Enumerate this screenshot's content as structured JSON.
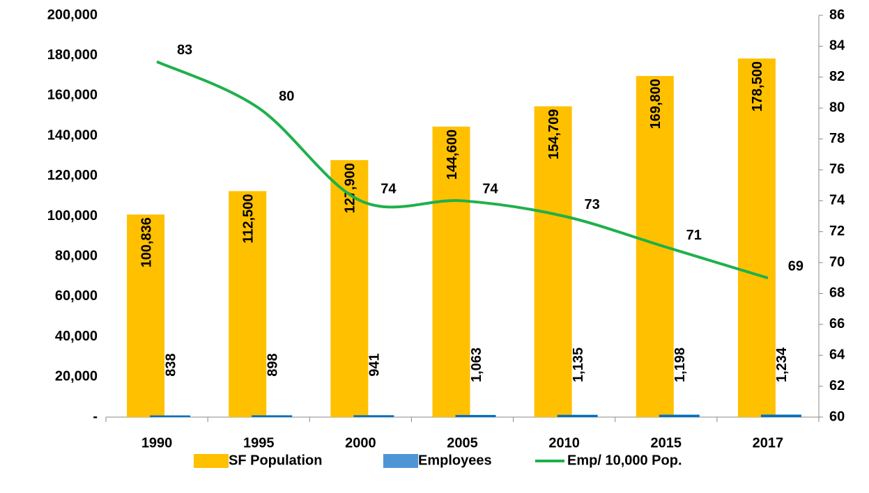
{
  "chart_data": {
    "type": "bar+line",
    "categories": [
      "1990",
      "1995",
      "2000",
      "2005",
      "2010",
      "2015",
      "2017"
    ],
    "series": [
      {
        "name": "SF Population",
        "type": "bar",
        "color": "#ffc000",
        "values": [
          100836,
          112500,
          127900,
          144600,
          154709,
          169800,
          178500
        ],
        "value_labels": [
          "100,836",
          "112,500",
          "127,900",
          "144,600",
          "154,709",
          "169,800",
          "178,500"
        ]
      },
      {
        "name": "Employees",
        "type": "bar",
        "color": "#0070c0",
        "values": [
          838,
          898,
          941,
          1063,
          1135,
          1198,
          1234
        ],
        "value_labels": [
          "838",
          "898",
          "941",
          "1,063",
          "1,135",
          "1,198",
          "1,234"
        ]
      },
      {
        "name": "Emp/ 10,000 Pop.",
        "type": "line",
        "axis": "y2",
        "color": "#1fb04b",
        "values": [
          83,
          80,
          74,
          74,
          73,
          71,
          69
        ]
      }
    ],
    "ylim": [
      0,
      200000
    ],
    "yticks": [
      {
        "value": 0,
        "label": "-"
      },
      {
        "value": 20000,
        "label": "20,000"
      },
      {
        "value": 40000,
        "label": "40,000"
      },
      {
        "value": 60000,
        "label": "60,000"
      },
      {
        "value": 80000,
        "label": "80,000"
      },
      {
        "value": 100000,
        "label": "100,000"
      },
      {
        "value": 120000,
        "label": "120,000"
      },
      {
        "value": 140000,
        "label": "140,000"
      },
      {
        "value": 160000,
        "label": "160,000"
      },
      {
        "value": 180000,
        "label": "180,000"
      },
      {
        "value": 200000,
        "label": "200,000"
      }
    ],
    "y2lim": [
      60,
      86
    ],
    "y2ticks": [
      60,
      62,
      64,
      66,
      68,
      70,
      72,
      74,
      76,
      78,
      80,
      82,
      84,
      86
    ],
    "legend": "bottom",
    "grid": false
  }
}
